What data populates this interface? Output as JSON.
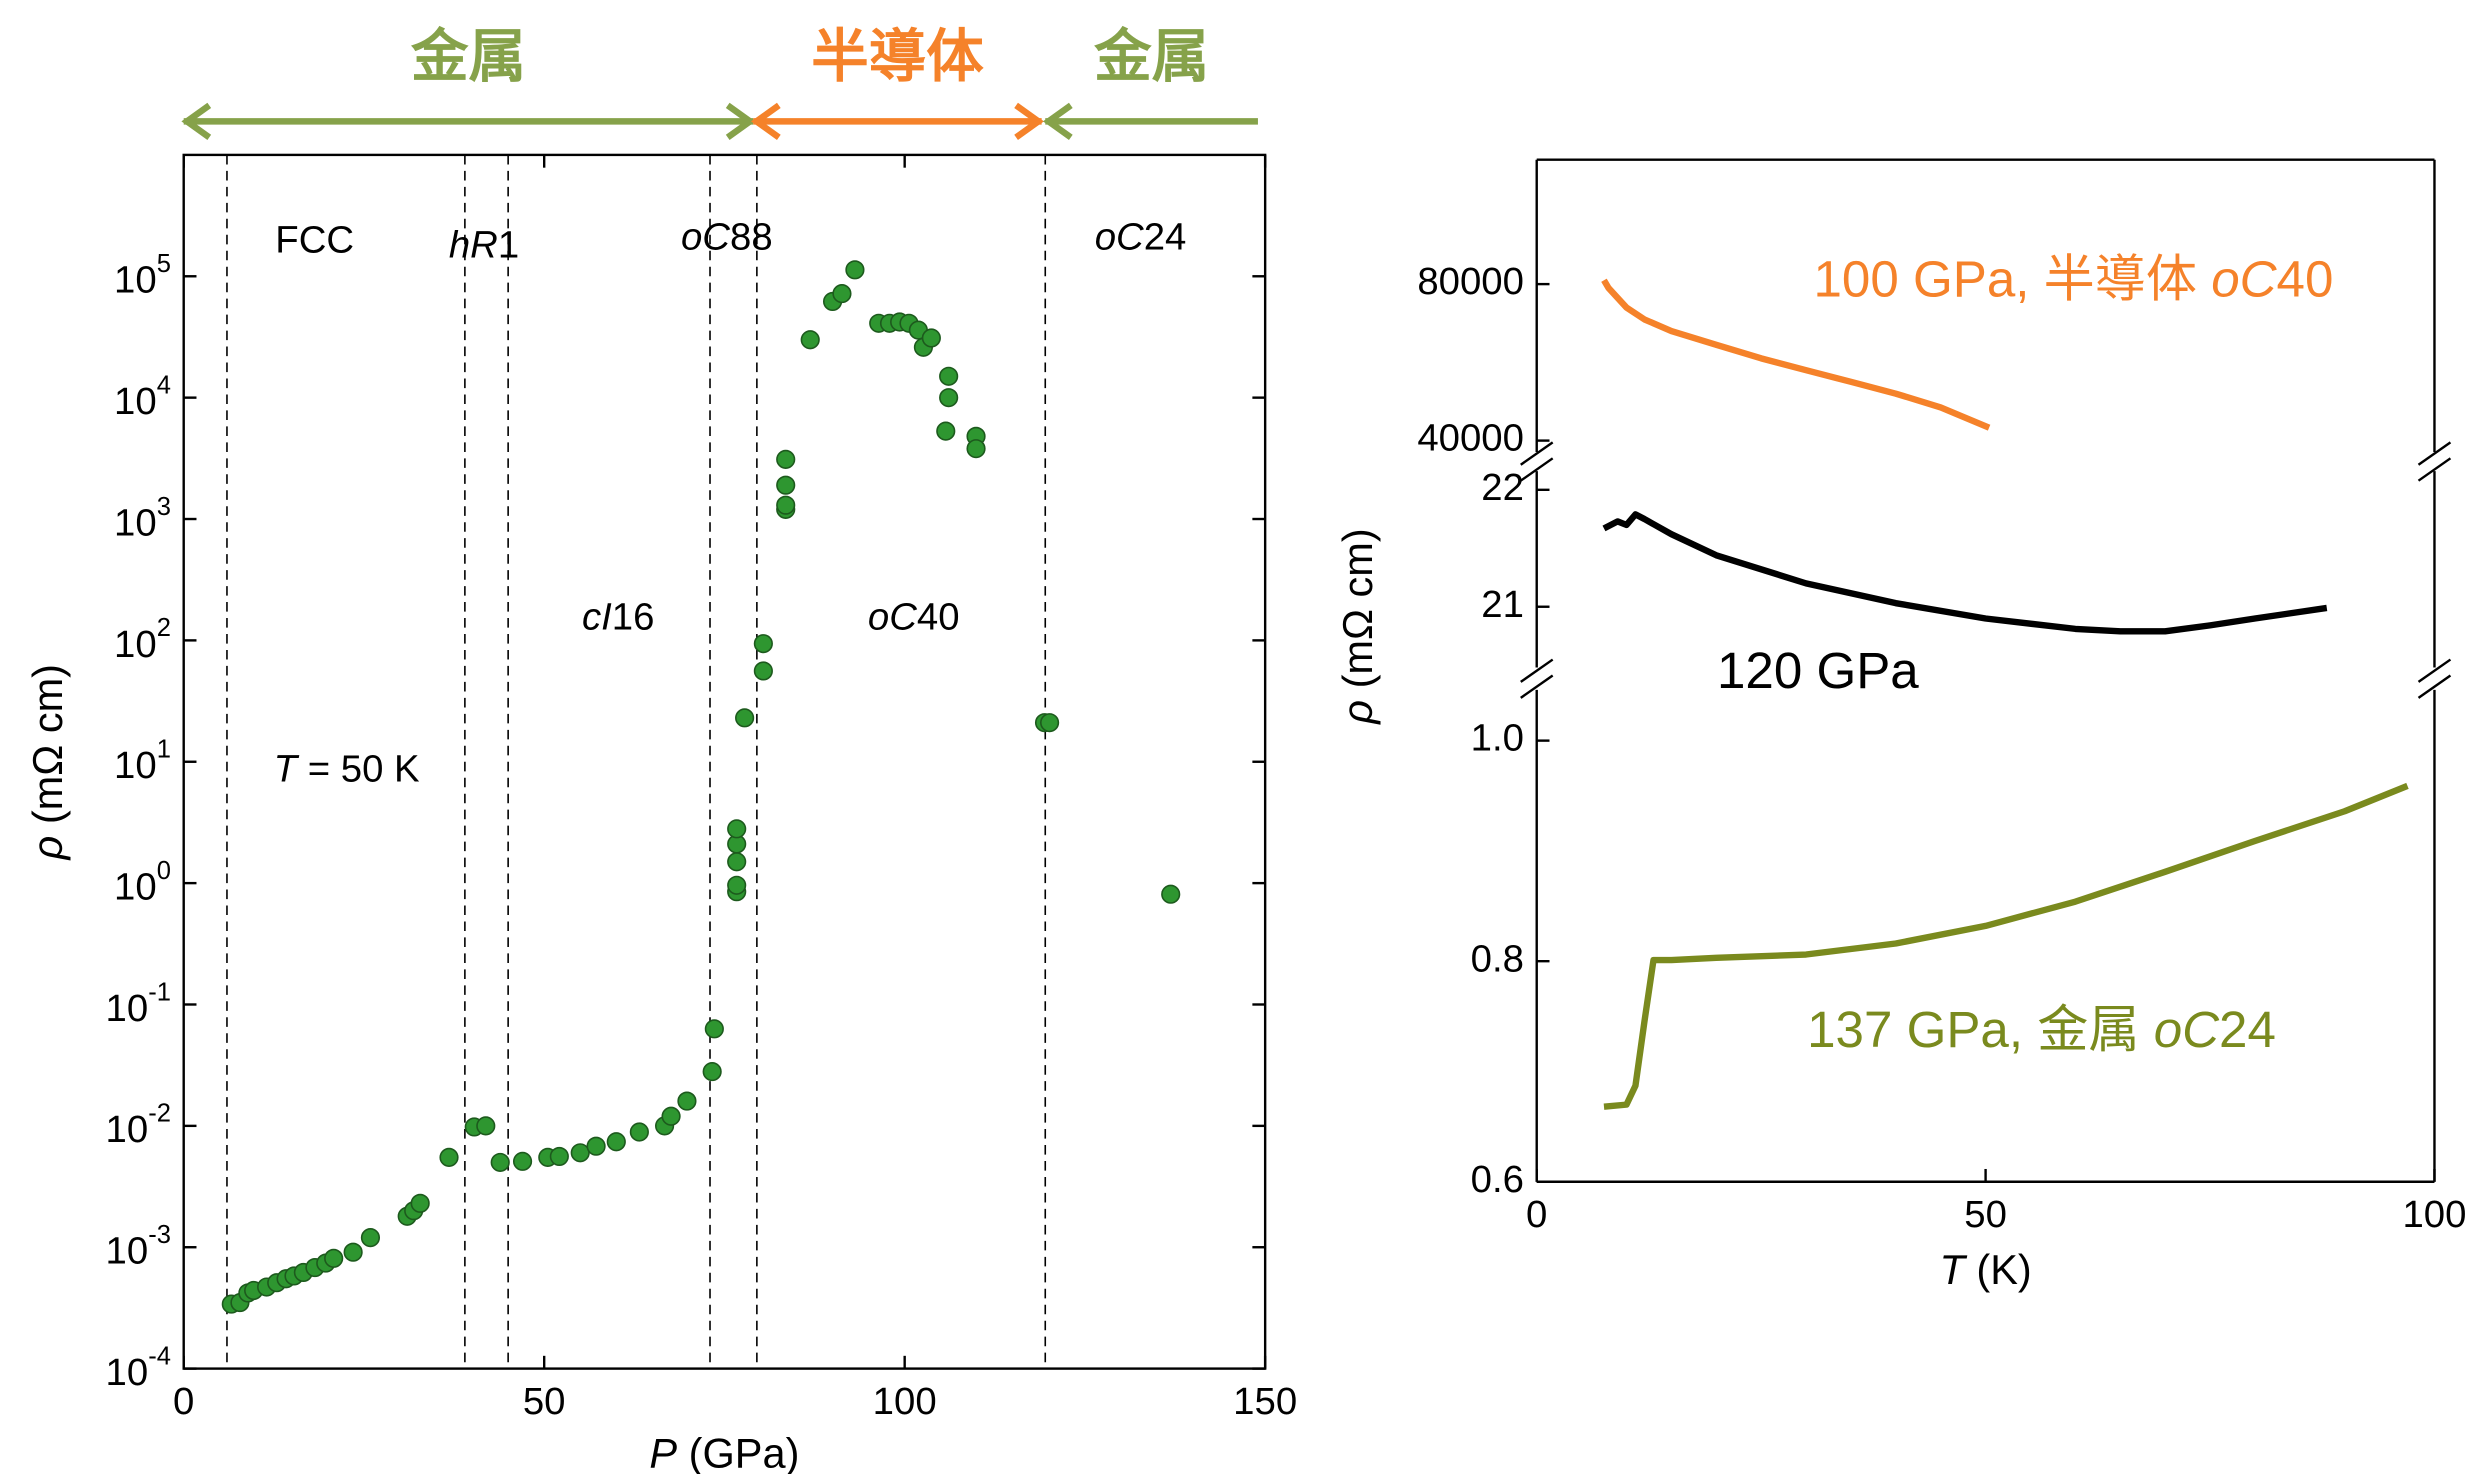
{
  "chart_data": [
    {
      "type": "scatter",
      "log_y": true,
      "xlabel": [
        {
          "text": "P",
          "italic": true
        },
        {
          "text": " (GPa)"
        }
      ],
      "ylabel": [
        {
          "text": "ρ",
          "italic": true
        },
        {
          "text": " (mΩ cm)"
        }
      ],
      "xlim": [
        0,
        150
      ],
      "xticks": [
        0,
        50,
        100,
        150
      ],
      "ylim": [
        0.0001,
        1000000
      ],
      "yticks": [
        {
          "value": 0.0001,
          "label": "10",
          "exponent": "-4"
        },
        {
          "value": 0.001,
          "label": "10",
          "exponent": "-3"
        },
        {
          "value": 0.01,
          "label": "10",
          "exponent": "-2"
        },
        {
          "value": 0.1,
          "label": "10",
          "exponent": "-1"
        },
        {
          "value": 1,
          "label": "10",
          "exponent": "0"
        },
        {
          "value": 10,
          "label": "10",
          "exponent": "1"
        },
        {
          "value": 100,
          "label": "10",
          "exponent": "2"
        },
        {
          "value": 1000,
          "label": "10",
          "exponent": "3"
        },
        {
          "value": 10000,
          "label": "10",
          "exponent": "4"
        },
        {
          "value": 100000,
          "label": "10",
          "exponent": "5"
        }
      ],
      "color": "#2e9630",
      "x": [
        6.6,
        7.8,
        8.9,
        9.7,
        11.5,
        12.9,
        14.2,
        15.3,
        16.6,
        18.2,
        19.7,
        20.8,
        23.5,
        25.9,
        31.0,
        31.9,
        32.8,
        36.8,
        40.3,
        41.9,
        43.9,
        47.0,
        50.5,
        52.1,
        55.0,
        57.2,
        60.0,
        63.2,
        66.7,
        67.6,
        69.8,
        73.3,
        73.6,
        76.7,
        76.7,
        76.7,
        76.7,
        76.7,
        77.8,
        80.4,
        80.4,
        83.5,
        83.5,
        83.5,
        83.5,
        86.9,
        90.0,
        91.3,
        93.1,
        96.4,
        97.9,
        99.3,
        100.6,
        101.9,
        102.6,
        103.7,
        106.1,
        106.1,
        105.7,
        109.9,
        109.9,
        119.4,
        120.1,
        136.9
      ],
      "values": [
        0.00034,
        0.00035,
        0.00042,
        0.00044,
        0.00047,
        0.00051,
        0.00055,
        0.00058,
        0.00062,
        0.00068,
        0.00074,
        0.00081,
        0.00091,
        0.0012,
        0.0018,
        0.002,
        0.0023,
        0.0055,
        0.0098,
        0.01,
        0.005,
        0.0051,
        0.0055,
        0.0056,
        0.006,
        0.0068,
        0.0074,
        0.0089,
        0.01,
        0.012,
        0.016,
        0.028,
        0.063,
        0.85,
        0.96,
        1.5,
        2.1,
        2.8,
        23,
        56,
        94,
        1200,
        1300,
        1900,
        3100,
        30000,
        62000,
        72000,
        113000,
        41000,
        41000,
        42000,
        41000,
        36000,
        26000,
        31000,
        15000,
        10000,
        5300,
        4800,
        3800,
        21,
        21,
        0.81
      ],
      "boundaries": [
        6,
        39,
        45,
        73,
        79.5,
        119.5
      ],
      "phases": [
        [
          {
            "text": "FCC"
          }
        ],
        [
          {
            "text": "hR",
            "italic": true
          },
          {
            "text": "1"
          }
        ],
        [
          {
            "text": "oC",
            "italic": true
          },
          {
            "text": "88"
          }
        ],
        [
          {
            "text": "oC",
            "italic": true
          },
          {
            "text": "24"
          }
        ],
        [
          {
            "text": "cI",
            "italic": true
          },
          {
            "text": "16"
          }
        ],
        [
          {
            "text": "oC",
            "italic": true
          },
          {
            "text": "40"
          }
        ],
        [
          {
            "text": "T",
            "italic": true
          },
          {
            "text": " = 50 K"
          }
        ]
      ],
      "regions": [
        {
          "label": "金属",
          "color": "#86a24a",
          "from": 0,
          "to": 79,
          "heads": [
            "start",
            "end"
          ]
        },
        {
          "label": "半導体",
          "color": "#f5822a",
          "from": 79,
          "to": 119,
          "heads": [
            "start",
            "end"
          ]
        },
        {
          "label": "金属",
          "color": "#86a24a",
          "from": 119.5,
          "to": 149,
          "heads": [
            "start"
          ]
        }
      ]
    },
    {
      "type": "broken-line",
      "xlabel": [
        {
          "text": "T",
          "italic": true
        },
        {
          "text": " (K)"
        }
      ],
      "ylabel": [
        {
          "text": "ρ",
          "italic": true
        },
        {
          "text": " (mΩ cm)"
        }
      ],
      "xlim": [
        0,
        100
      ],
      "xticks": [
        0,
        50,
        100
      ],
      "segments": [
        {
          "ylim": [
            37100,
            111800
          ],
          "yticks": [
            40000,
            80000
          ],
          "series": [
            {
              "label": [
                {
                  "text": "100 GPa, 半導体 "
                },
                {
                  "text": "oC",
                  "italic": true
                },
                {
                  "text": "40"
                }
              ],
              "color": "#f5822a",
              "x": [
                7.5,
                8,
                9,
                10,
                12,
                15,
                20,
                25,
                30,
                35,
                40,
                45,
                50.4
              ],
              "values": [
                81000,
                79000,
                76500,
                74000,
                71000,
                68000,
                64500,
                61000,
                58000,
                55000,
                52000,
                48500,
                43300
              ]
            }
          ]
        },
        {
          "ylim": [
            20.48,
            22.16
          ],
          "yticks": [
            21,
            22
          ],
          "series": [
            {
              "label": [
                {
                  "text": "120 GPa"
                }
              ],
              "color": "#000000",
              "x": [
                7.5,
                9,
                10,
                11,
                12,
                15,
                20,
                30,
                40,
                50,
                60,
                65,
                70,
                75,
                80,
                88
              ],
              "values": [
                21.67,
                21.73,
                21.7,
                21.79,
                21.75,
                21.62,
                21.44,
                21.2,
                21.03,
                20.9,
                20.81,
                20.79,
                20.79,
                20.84,
                20.9,
                20.99
              ]
            }
          ]
        },
        {
          "ylim": [
            0.6,
            1.046
          ],
          "yticks": [
            0.6,
            0.8,
            {
              "value": 1,
              "label": "1.0"
            }
          ],
          "series": [
            {
              "label": [
                {
                  "text": "137 GPa, 金属 "
                },
                {
                  "text": "oC",
                  "italic": true
                },
                {
                  "text": "24"
                }
              ],
              "color": "#7a8a1e",
              "x": [
                7.5,
                10,
                11,
                12,
                13,
                15,
                20,
                30,
                40,
                50,
                60,
                70,
                80,
                90,
                97
              ],
              "values": [
                0.668,
                0.67,
                0.687,
                0.745,
                0.801,
                0.801,
                0.803,
                0.806,
                0.816,
                0.832,
                0.854,
                0.881,
                0.909,
                0.936,
                0.959
              ]
            }
          ]
        }
      ]
    }
  ]
}
